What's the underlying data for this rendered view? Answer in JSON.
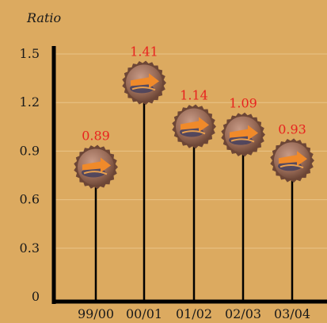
{
  "chart_data": {
    "type": "lollipop",
    "ylabel": "Ratio",
    "categories": [
      "99/00",
      "00/01",
      "01/02",
      "02/03",
      "03/04"
    ],
    "values": [
      0.89,
      1.41,
      1.14,
      1.09,
      0.93
    ],
    "value_labels": [
      "0.89",
      "1.41",
      "1.14",
      "1.09",
      "0.93"
    ],
    "yticks": [
      "0",
      "0.3",
      "0.6",
      "0.9",
      "1.2",
      "1.5"
    ],
    "ylim": [
      0,
      1.5
    ],
    "grid": true,
    "colors": {
      "background": "#dcaa60",
      "grid": "#e9c487",
      "axis": "#000000",
      "value_label": "#e8231f",
      "cap_base": "#9a6c58",
      "cap_arrow": "#f08a2a"
    }
  }
}
